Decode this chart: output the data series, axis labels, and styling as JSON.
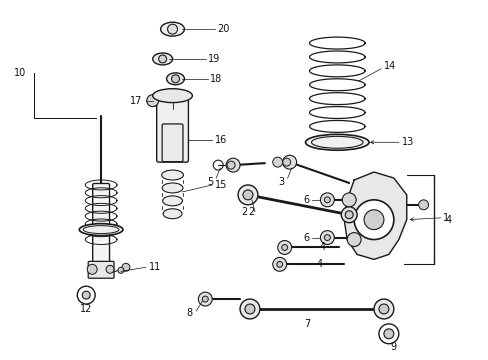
{
  "bg_color": "#ffffff",
  "fig_width": 4.89,
  "fig_height": 3.6,
  "dpi": 100,
  "lc": "#1a1a1a",
  "lw_part": 1.0,
  "lw_thin": 0.6,
  "lw_label": 0.5,
  "fs": 7.0
}
